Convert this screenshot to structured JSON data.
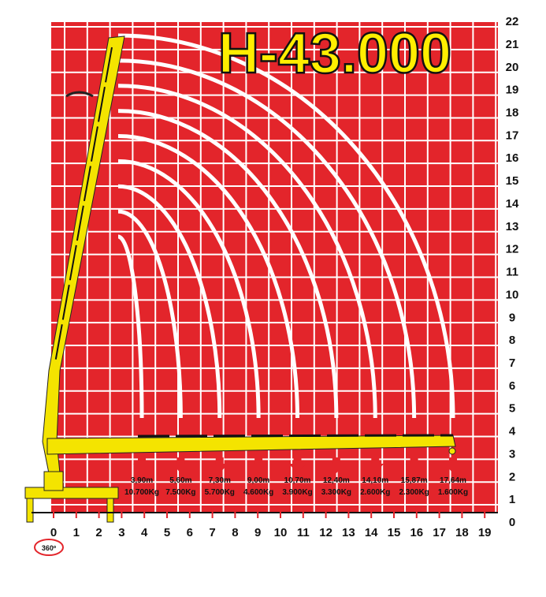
{
  "title": "H-43.000",
  "x_labels": [
    0,
    1,
    2,
    3,
    4,
    5,
    6,
    7,
    8,
    9,
    10,
    11,
    12,
    13,
    14,
    15,
    16,
    17,
    18,
    19
  ],
  "y_labels": [
    0,
    1,
    2,
    3,
    4,
    5,
    6,
    7,
    8,
    9,
    10,
    11,
    12,
    13,
    14,
    15,
    16,
    17,
    18,
    19,
    20,
    21,
    22
  ],
  "loads": [
    {
      "reach": "3,90m",
      "capacity": "10.700Kg"
    },
    {
      "reach": "5,60m",
      "capacity": "7.500Kg"
    },
    {
      "reach": "7,30m",
      "capacity": "5.700Kg"
    },
    {
      "reach": "9,00m",
      "capacity": "4.600Kg"
    },
    {
      "reach": "10,70m",
      "capacity": "3.900Kg"
    },
    {
      "reach": "12,40m",
      "capacity": "3.300Kg"
    },
    {
      "reach": "14,10m",
      "capacity": "2.600Kg"
    },
    {
      "reach": "15,87m",
      "capacity": "2.300Kg"
    },
    {
      "reach": "17,64m",
      "capacity": "1.600Kg"
    }
  ],
  "rotation": "360º"
}
